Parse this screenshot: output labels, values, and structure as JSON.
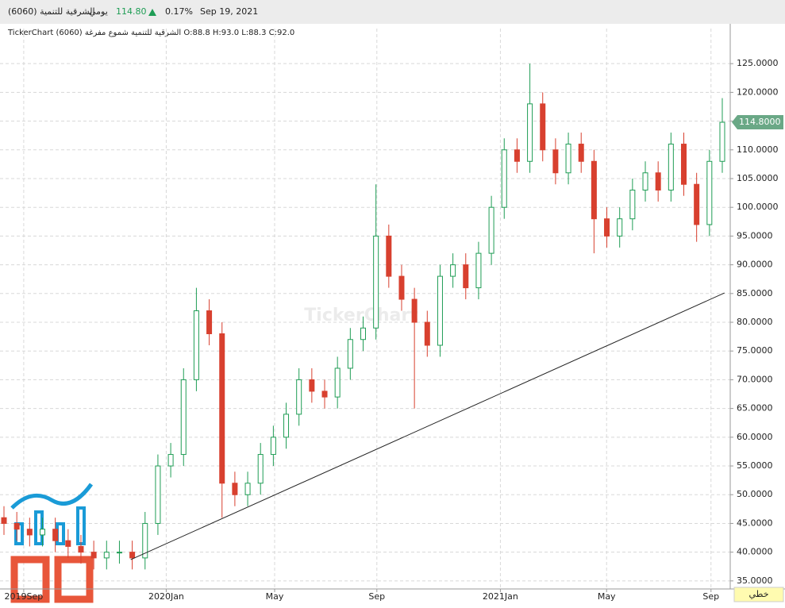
{
  "header": {
    "name": "(6060) الشرقية للتنمية",
    "period": "يومي",
    "price": "114.80",
    "change": "0.17%",
    "date": "Sep 19, 2021",
    "legend": "TickerChart الشرقية للتنمية شموع مفرغة (6060) O:88.8 H:93.0 L:88.3 C:92.0",
    "watermark": "TickerChart",
    "mode": "خطي"
  },
  "chart_data": {
    "type": "candlestick",
    "x": [
      0,
      1,
      2,
      3,
      4,
      5,
      6,
      7,
      8,
      9,
      10,
      11,
      12,
      13,
      14,
      15,
      16,
      17,
      18,
      19,
      20,
      21,
      22,
      23,
      24,
      25,
      26,
      27,
      28,
      29,
      30,
      31,
      32,
      33,
      34,
      35,
      36,
      37,
      38,
      39,
      40,
      41,
      42,
      43,
      44,
      45,
      46,
      47,
      48,
      49,
      50,
      51,
      52,
      53,
      54,
      55,
      56
    ],
    "open": [
      46,
      45,
      44,
      43,
      44,
      42,
      41,
      40,
      39,
      40,
      40,
      39,
      45,
      55,
      57,
      70,
      82,
      78,
      52,
      50,
      52,
      57,
      60,
      64,
      70,
      68,
      67,
      72,
      77,
      79,
      95,
      88,
      84,
      80,
      76,
      88,
      90,
      86,
      92,
      100,
      110,
      108,
      118,
      110,
      106,
      111,
      108,
      98,
      95,
      98,
      103,
      106,
      103,
      111,
      104,
      97,
      108
    ],
    "high": [
      48,
      47,
      46,
      46,
      46,
      44,
      43,
      42,
      42,
      42,
      42,
      47,
      57,
      59,
      72,
      86,
      84,
      80,
      54,
      54,
      59,
      62,
      66,
      72,
      72,
      70,
      74,
      79,
      81,
      104,
      97,
      90,
      86,
      82,
      90,
      92,
      92,
      94,
      102,
      112,
      112,
      125,
      120,
      112,
      113,
      113,
      110,
      100,
      100,
      105,
      108,
      108,
      113,
      113,
      106,
      110,
      119
    ],
    "low": [
      43,
      42,
      41,
      41,
      40,
      39,
      38,
      37,
      37,
      38,
      37,
      37,
      43,
      53,
      55,
      68,
      76,
      46,
      48,
      48,
      50,
      55,
      58,
      62,
      66,
      65,
      65,
      70,
      75,
      77,
      86,
      82,
      65,
      74,
      74,
      86,
      84,
      84,
      90,
      98,
      106,
      106,
      108,
      104,
      104,
      106,
      92,
      93,
      93,
      96,
      101,
      101,
      101,
      102,
      94,
      95,
      106
    ],
    "close": [
      45,
      44,
      43,
      44,
      42,
      41,
      40,
      39,
      40,
      40,
      39,
      45,
      55,
      57,
      70,
      82,
      78,
      52,
      50,
      52,
      57,
      60,
      64,
      70,
      68,
      67,
      72,
      77,
      79,
      95,
      88,
      84,
      80,
      76,
      88,
      90,
      86,
      92,
      100,
      110,
      108,
      118,
      110,
      106,
      111,
      108,
      98,
      95,
      98,
      103,
      106,
      103,
      111,
      104,
      97,
      108,
      114.8
    ],
    "up_color": "#1f9d55",
    "down_color": "#d8402f",
    "xlim": [
      -0.31,
      56.62
    ],
    "xticks": [
      {
        "value": 1.54,
        "label": "2019Sep"
      },
      {
        "value": 12.65,
        "label": "2020Jan"
      },
      {
        "value": 21.1,
        "label": "May"
      },
      {
        "value": 29.07,
        "label": "Sep"
      },
      {
        "value": 38.7,
        "label": "2021Jan"
      },
      {
        "value": 46.98,
        "label": "May"
      },
      {
        "value": 55.12,
        "label": "Sep"
      }
    ],
    "ylim": [
      33.6,
      131.1
    ],
    "yticks": [
      {
        "value": 35,
        "label": "35.0000"
      },
      {
        "value": 40,
        "label": "40.0000"
      },
      {
        "value": 45,
        "label": "45.0000"
      },
      {
        "value": 50,
        "label": "50.0000"
      },
      {
        "value": 55,
        "label": "55.0000"
      },
      {
        "value": 60,
        "label": "60.0000"
      },
      {
        "value": 65,
        "label": "65.0000"
      },
      {
        "value": 70,
        "label": "70.0000"
      },
      {
        "value": 75,
        "label": "75.0000"
      },
      {
        "value": 80,
        "label": "80.0000"
      },
      {
        "value": 85,
        "label": "85.0000"
      },
      {
        "value": 90,
        "label": "90.0000"
      },
      {
        "value": 95,
        "label": "95.0000"
      },
      {
        "value": 100,
        "label": "100.0000"
      },
      {
        "value": 105,
        "label": "105.0000"
      },
      {
        "value": 110,
        "label": "110.0000"
      },
      {
        "value": 115,
        "label": "115.0000"
      },
      {
        "value": 120,
        "label": "120.0000"
      },
      {
        "value": 125,
        "label": "125.0000"
      }
    ],
    "price_tag": {
      "value": 114.8,
      "label": "114.8000"
    },
    "trendline": {
      "x": [
        9.88,
        56.17
      ],
      "y": [
        38.7,
        85.1
      ]
    },
    "grid": true
  }
}
